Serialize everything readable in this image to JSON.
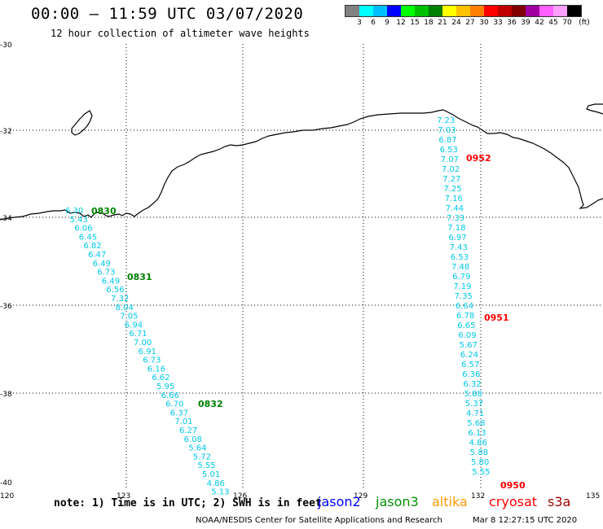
{
  "title": "00:00 – 11:59 UTC 03/07/2020",
  "subtitle": "12 hour collection of altimeter wave heights",
  "legend": {
    "colors": [
      "#808080",
      "#00ffff",
      "#00bfff",
      "#0000ff",
      "#00ff00",
      "#00c000",
      "#008000",
      "#ffff00",
      "#ffc000",
      "#ff8000",
      "#ff0000",
      "#c00000",
      "#800000",
      "#a000a0",
      "#ff60ff",
      "#ffa0ff",
      "#000000"
    ],
    "labels": [
      "3",
      "6",
      "9",
      "12",
      "15",
      "18",
      "21",
      "24",
      "27",
      "30",
      "33",
      "36",
      "39",
      "42",
      "45",
      "70"
    ],
    "unit": "(ft)"
  },
  "axes": {
    "lat_ticks": [
      "-30",
      "-32",
      "-34",
      "-36",
      "-38",
      "-40"
    ],
    "lon_ticks": [
      "120",
      "123",
      "126",
      "129",
      "132",
      "135"
    ]
  },
  "tracks": [
    {
      "satellite": "jason3",
      "text_color": "#00c8e8",
      "values": [
        "6.30",
        "5.43",
        "6.06",
        "6.45",
        "6.82",
        "6.47",
        "6.49",
        "6.73",
        "6.49",
        "6.56",
        "7.32",
        "8.04",
        "7.05",
        "6.94",
        "6.71",
        "7.00",
        "6.91",
        "6.73",
        "6.16",
        "6.62",
        "5.95",
        "6.66",
        "6.70",
        "6.37",
        "7.01",
        "6.27",
        "6.08",
        "5.64",
        "5.72",
        "5.55",
        "5.01",
        "4.86",
        "5.13"
      ],
      "times": [
        {
          "label": "0830",
          "color": "#008000"
        },
        {
          "label": "0831",
          "color": "#008000"
        },
        {
          "label": "0832",
          "color": "#008000"
        }
      ]
    },
    {
      "satellite": "cryosat",
      "text_color": "#00c8e8",
      "values": [
        "7.23",
        "7.03",
        "6.87",
        "6.53",
        "7.07",
        "7.02",
        "7.27",
        "7.25",
        "7.16",
        "7.44",
        "7.33",
        "7.18",
        "6.97",
        "7.43",
        "6.53",
        "7.48",
        "6.79",
        "7.19",
        "7.35",
        "6.64",
        "6.78",
        "6.65",
        "6.09",
        "5.67",
        "6.24",
        "6.57",
        "6.36",
        "6.32",
        "5.88",
        "5.37",
        "4.71",
        "5.68",
        "6.13",
        "4.86",
        "5.88",
        "5.80",
        "5.55"
      ],
      "times": [
        {
          "label": "0952",
          "color": "#ff0000"
        },
        {
          "label": "0951",
          "color": "#ff0000"
        },
        {
          "label": "0950",
          "color": "#ff0000"
        }
      ]
    }
  ],
  "note": "note:  1) Time is in UTC;  2) SWH is in feet",
  "satellites": [
    {
      "name": "jason2",
      "color": "#0000ff"
    },
    {
      "name": "jason3",
      "color": "#009000"
    },
    {
      "name": "altika",
      "color": "#ff9900"
    },
    {
      "name": "cryosat",
      "color": "#ff0000"
    },
    {
      "name": "s3a",
      "color": "#990000"
    }
  ],
  "credit": "NOAA/NESDIS Center for Satellite Applications and Research",
  "timestamp": "Mar  8 12:27:15 UTC 2020"
}
